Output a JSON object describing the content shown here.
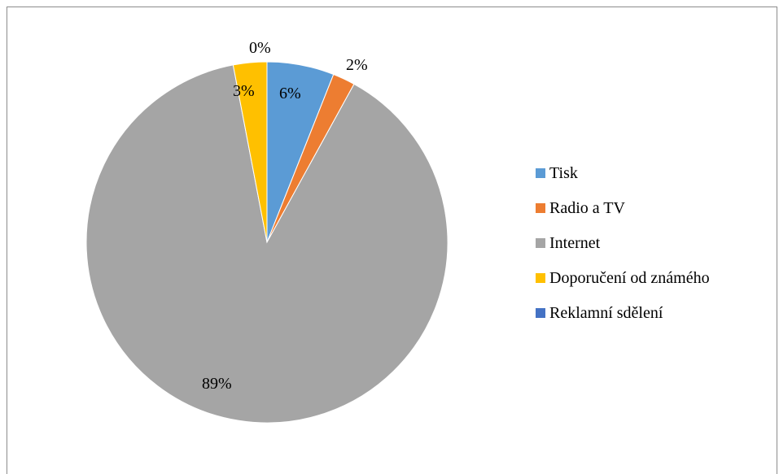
{
  "chart_data": {
    "type": "pie",
    "title": "",
    "series": [
      {
        "categories": [
          "Tisk",
          "Radio a TV",
          "Internet",
          "Doporučení od známého",
          "Reklamní sdělení"
        ],
        "values": [
          6,
          2,
          89,
          3,
          0
        ],
        "labels": [
          "6%",
          "2%",
          "89%",
          "3%",
          "0%"
        ],
        "colors": [
          "#5B9BD5",
          "#ED7D31",
          "#A5A5A5",
          "#FFC000",
          "#4472C4"
        ]
      }
    ],
    "legend_position": "right"
  }
}
